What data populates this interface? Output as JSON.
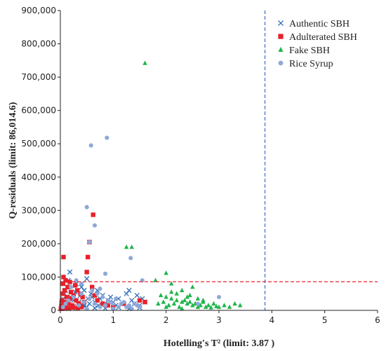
{
  "chart_data": {
    "type": "scatter",
    "xlabel": "Hotelling's T² (limit: 3.87 )",
    "ylabel": "Q-residuals (limit: 86,014.6)",
    "xlim": [
      0,
      6
    ],
    "ylim": [
      0,
      900000
    ],
    "x_ticks": [
      "0",
      "1",
      "2",
      "3",
      "4",
      "5",
      "6"
    ],
    "y_ticks": [
      "0",
      "100,000",
      "200,000",
      "300,000",
      "400,000",
      "500,000",
      "600,000",
      "700,000",
      "800,000",
      "900,000"
    ],
    "grid": false,
    "legend_position": "top-right",
    "limits": {
      "x": 3.87,
      "y": 86014.6
    },
    "colors": {
      "authentic": "#2e6fb5",
      "adulterated": "#e8202a",
      "fake": "#1fb54a",
      "rice": "#8fa8d8",
      "x_limit_line": "#3a6fc4",
      "y_limit_line": "#e8202a"
    },
    "series": [
      {
        "name": "Authentic SBH",
        "marker": "x",
        "points": [
          [
            0.02,
            20000
          ],
          [
            0.05,
            35000
          ],
          [
            0.08,
            50000
          ],
          [
            0.1,
            60000
          ],
          [
            0.12,
            70000
          ],
          [
            0.15,
            90000
          ],
          [
            0.18,
            115000
          ],
          [
            0.2,
            40000
          ],
          [
            0.25,
            30000
          ],
          [
            0.28,
            55000
          ],
          [
            0.3,
            80000
          ],
          [
            0.35,
            25000
          ],
          [
            0.38,
            45000
          ],
          [
            0.4,
            70000
          ],
          [
            0.42,
            15000
          ],
          [
            0.45,
            60000
          ],
          [
            0.5,
            95000
          ],
          [
            0.52,
            35000
          ],
          [
            0.55,
            20000
          ],
          [
            0.58,
            50000
          ],
          [
            0.6,
            40000
          ],
          [
            0.65,
            25000
          ],
          [
            0.7,
            60000
          ],
          [
            0.72,
            15000
          ],
          [
            0.75,
            35000
          ],
          [
            0.8,
            45000
          ],
          [
            0.85,
            20000
          ],
          [
            0.9,
            30000
          ],
          [
            0.95,
            40000
          ],
          [
            1.0,
            25000
          ],
          [
            1.05,
            15000
          ],
          [
            1.1,
            35000
          ],
          [
            1.2,
            20000
          ],
          [
            1.25,
            50000
          ],
          [
            1.3,
            60000
          ],
          [
            1.35,
            30000
          ],
          [
            1.4,
            20000
          ],
          [
            1.45,
            45000
          ],
          [
            1.5,
            15000
          ],
          [
            1.55,
            35000
          ],
          [
            1.6,
            25000
          ],
          [
            0.15,
            5000
          ],
          [
            0.3,
            8000
          ],
          [
            0.5,
            10000
          ],
          [
            0.65,
            7000
          ],
          [
            0.85,
            6000
          ],
          [
            1.1,
            9000
          ],
          [
            1.3,
            5000
          ],
          [
            1.5,
            8000
          ],
          [
            0.25,
            12000
          ],
          [
            0.45,
            14000
          ]
        ]
      },
      {
        "name": "Adulterated SBH",
        "marker": "square",
        "points": [
          [
            0.01,
            5000
          ],
          [
            0.02,
            15000
          ],
          [
            0.03,
            30000
          ],
          [
            0.04,
            50000
          ],
          [
            0.05,
            80000
          ],
          [
            0.06,
            160000
          ],
          [
            0.07,
            25000
          ],
          [
            0.08,
            60000
          ],
          [
            0.1,
            10000
          ],
          [
            0.12,
            40000
          ],
          [
            0.14,
            70000
          ],
          [
            0.15,
            20000
          ],
          [
            0.18,
            35000
          ],
          [
            0.2,
            55000
          ],
          [
            0.22,
            15000
          ],
          [
            0.25,
            45000
          ],
          [
            0.28,
            75000
          ],
          [
            0.3,
            30000
          ],
          [
            0.32,
            60000
          ],
          [
            0.35,
            20000
          ],
          [
            0.38,
            50000
          ],
          [
            0.4,
            10000
          ],
          [
            0.42,
            40000
          ],
          [
            0.45,
            25000
          ],
          [
            0.5,
            115000
          ],
          [
            0.52,
            160000
          ],
          [
            0.55,
            205000
          ],
          [
            0.62,
            287000
          ],
          [
            0.6,
            70000
          ],
          [
            0.65,
            45000
          ],
          [
            0.7,
            30000
          ],
          [
            0.8,
            20000
          ],
          [
            0.9,
            15000
          ],
          [
            1.0,
            10000
          ],
          [
            1.2,
            20000
          ],
          [
            1.5,
            30000
          ],
          [
            1.6,
            25000
          ],
          [
            0.04,
            5000
          ],
          [
            0.09,
            8000
          ],
          [
            0.16,
            6000
          ],
          [
            0.24,
            9000
          ],
          [
            0.33,
            7000
          ],
          [
            0.06,
            100000
          ],
          [
            0.1,
            90000
          ],
          [
            0.18,
            85000
          ]
        ]
      },
      {
        "name": "Fake SBH",
        "marker": "triangle",
        "points": [
          [
            1.6,
            742000
          ],
          [
            1.25,
            190000
          ],
          [
            1.35,
            190000
          ],
          [
            2.0,
            112000
          ],
          [
            1.8,
            90000
          ],
          [
            2.1,
            80000
          ],
          [
            2.5,
            70000
          ],
          [
            2.3,
            60000
          ],
          [
            1.9,
            45000
          ],
          [
            2.0,
            40000
          ],
          [
            2.1,
            35000
          ],
          [
            2.2,
            30000
          ],
          [
            2.3,
            25000
          ],
          [
            2.4,
            20000
          ],
          [
            2.5,
            15000
          ],
          [
            2.6,
            10000
          ],
          [
            2.7,
            25000
          ],
          [
            2.8,
            15000
          ],
          [
            2.9,
            20000
          ],
          [
            3.0,
            10000
          ],
          [
            3.1,
            15000
          ],
          [
            3.2,
            10000
          ],
          [
            3.3,
            20000
          ],
          [
            3.4,
            15000
          ],
          [
            1.95,
            25000
          ],
          [
            2.05,
            15000
          ],
          [
            2.15,
            20000
          ],
          [
            2.25,
            10000
          ],
          [
            2.35,
            30000
          ],
          [
            2.45,
            25000
          ],
          [
            2.55,
            20000
          ],
          [
            2.65,
            15000
          ],
          [
            2.75,
            10000
          ],
          [
            2.85,
            8000
          ],
          [
            2.95,
            12000
          ],
          [
            2.2,
            50000
          ],
          [
            2.4,
            40000
          ],
          [
            2.6,
            35000
          ],
          [
            2.0,
            10000
          ],
          [
            2.3,
            5000
          ],
          [
            1.85,
            20000
          ],
          [
            2.1,
            55000
          ],
          [
            2.45,
            45000
          ],
          [
            2.7,
            30000
          ]
        ]
      },
      {
        "name": "Rice Syrup",
        "marker": "circle",
        "points": [
          [
            0.88,
            518000
          ],
          [
            0.58,
            495000
          ],
          [
            0.5,
            310000
          ],
          [
            0.65,
            255000
          ],
          [
            0.55,
            205000
          ],
          [
            1.33,
            157000
          ],
          [
            0.85,
            110000
          ],
          [
            0.3,
            90000
          ],
          [
            0.4,
            80000
          ],
          [
            0.2,
            70000
          ],
          [
            0.6,
            60000
          ],
          [
            0.7,
            50000
          ],
          [
            0.8,
            40000
          ],
          [
            0.9,
            30000
          ],
          [
            1.0,
            20000
          ],
          [
            1.1,
            10000
          ],
          [
            1.2,
            25000
          ],
          [
            1.3,
            15000
          ],
          [
            1.4,
            20000
          ],
          [
            1.5,
            10000
          ],
          [
            1.55,
            90000
          ],
          [
            0.1,
            20000
          ],
          [
            0.15,
            30000
          ],
          [
            0.25,
            40000
          ],
          [
            0.35,
            15000
          ],
          [
            0.45,
            25000
          ],
          [
            0.55,
            35000
          ],
          [
            0.65,
            20000
          ],
          [
            0.75,
            10000
          ],
          [
            0.85,
            15000
          ],
          [
            0.95,
            25000
          ],
          [
            1.05,
            35000
          ],
          [
            1.15,
            20000
          ],
          [
            1.25,
            10000
          ],
          [
            1.35,
            5000
          ],
          [
            1.45,
            15000
          ],
          [
            0.05,
            10000
          ],
          [
            0.5,
            5000
          ],
          [
            1.0,
            5000
          ],
          [
            3.0,
            40000
          ],
          [
            2.6,
            20000
          ],
          [
            0.4,
            50000
          ],
          [
            0.75,
            65000
          ]
        ]
      }
    ]
  }
}
